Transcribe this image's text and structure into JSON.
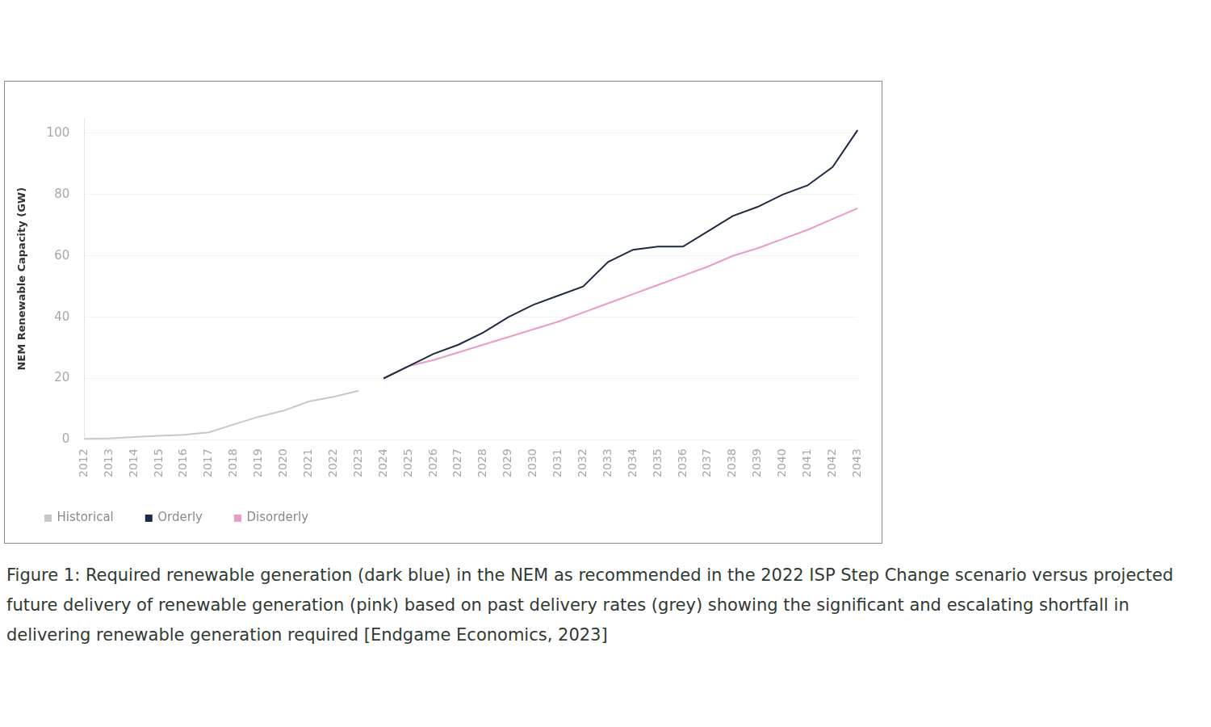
{
  "chart_data": {
    "type": "line",
    "y_label": "NEM Renewable Capacity (GW)",
    "caption": "Figure 1: Required renewable generation (dark blue) in the NEM as recommended in the 2022 ISP Step Change scenario versus projected future delivery of renewable generation (pink) based on past delivery rates (grey) showing the significant and escalating shortfall in delivering renewable generation required [Endgame Economics, 2023]",
    "categories": [
      "2012",
      "2013",
      "2014",
      "2015",
      "2016",
      "2017",
      "2018",
      "2019",
      "2020",
      "2021",
      "2022",
      "2023",
      "2024",
      "2025",
      "2026",
      "2027",
      "2028",
      "2029",
      "2030",
      "2031",
      "2032",
      "2033",
      "2034",
      "2035",
      "2036",
      "2037",
      "2038",
      "2039",
      "2040",
      "2041",
      "2042",
      "2043"
    ],
    "series": [
      {
        "name": "Historical",
        "color": "#c8c8c8",
        "values": [
          0.3,
          0.4,
          0.9,
          1.3,
          1.6,
          2.4,
          5,
          7.5,
          9.5,
          12.5,
          14,
          16,
          null,
          null,
          null,
          null,
          null,
          null,
          null,
          null,
          null,
          null,
          null,
          null,
          null,
          null,
          null,
          null,
          null,
          null,
          null,
          null
        ]
      },
      {
        "name": "Orderly",
        "color": "#1f2a44",
        "values": [
          null,
          null,
          null,
          null,
          null,
          null,
          null,
          null,
          null,
          null,
          null,
          null,
          20,
          24,
          28,
          31,
          35,
          40,
          44,
          47,
          50,
          58,
          62,
          63,
          63,
          68,
          73,
          76,
          80,
          83,
          89,
          101
        ]
      },
      {
        "name": "Disorderly",
        "color": "#e89cc9",
        "values": [
          null,
          null,
          null,
          null,
          null,
          null,
          null,
          null,
          null,
          null,
          null,
          null,
          20,
          24,
          26,
          28.5,
          31,
          33.5,
          36,
          38.5,
          41.5,
          44.5,
          47.5,
          50.5,
          53.5,
          56.5,
          60,
          62.5,
          65.5,
          68.5,
          72,
          75.5
        ]
      }
    ],
    "ylim": [
      0,
      105
    ],
    "yticks": [
      0,
      20,
      40,
      60,
      80,
      100
    ],
    "grid": true,
    "legend": "lower left"
  }
}
